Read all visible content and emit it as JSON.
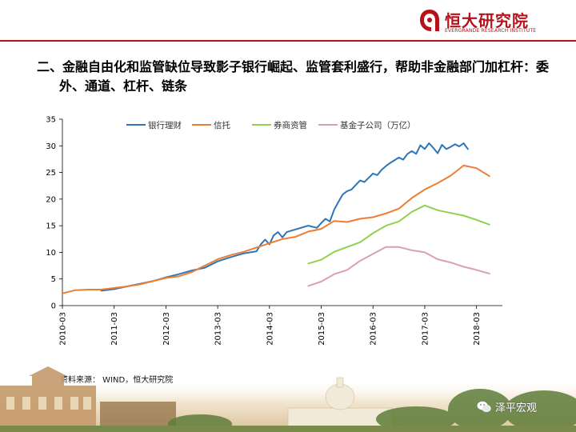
{
  "brand": {
    "name_cn": "恒大研究院",
    "name_en": "EVERGRANDE RESEARCH INSTITUTE",
    "color": "#b5121b"
  },
  "title_line1": "二、金融自由化和监管缺位导致影子银行崛起、监管套利盛行，帮助非金融部门加杠杆：委",
  "title_line2": "外、通道、杠杆、链条",
  "source": "资料来源： WIND，恒大研究院",
  "watermark": "泽平宏观",
  "chart_data": {
    "type": "line",
    "x_labels": [
      "2010-03",
      "2011-03",
      "2012-03",
      "2013-03",
      "2014-03",
      "2015-03",
      "2016-03",
      "2017-03",
      "2018-03"
    ],
    "ylim": [
      0,
      35
    ],
    "y_ticks": [
      0,
      5,
      10,
      15,
      20,
      25,
      30,
      35
    ],
    "grid": false,
    "legend_position": "top",
    "series": [
      {
        "name": "银行理财",
        "color": "#2e75b6",
        "points": [
          [
            "2010-12",
            2.8
          ],
          [
            "2011-03",
            3.1
          ],
          [
            "2011-06",
            3.6
          ],
          [
            "2011-09",
            4.1
          ],
          [
            "2011-12",
            4.6
          ],
          [
            "2012-03",
            5.3
          ],
          [
            "2012-06",
            5.9
          ],
          [
            "2012-09",
            6.6
          ],
          [
            "2012-12",
            7.1
          ],
          [
            "2013-03",
            8.3
          ],
          [
            "2013-06",
            9.1
          ],
          [
            "2013-09",
            9.8
          ],
          [
            "2013-12",
            10.2
          ],
          [
            "2014-01",
            11.5
          ],
          [
            "2014-02",
            12.4
          ],
          [
            "2014-03",
            11.5
          ],
          [
            "2014-04",
            13.2
          ],
          [
            "2014-05",
            13.8
          ],
          [
            "2014-06",
            12.8
          ],
          [
            "2014-07",
            13.8
          ],
          [
            "2014-09",
            14.3
          ],
          [
            "2014-12",
            15.0
          ],
          [
            "2015-02",
            14.6
          ],
          [
            "2015-03",
            15.5
          ],
          [
            "2015-04",
            16.3
          ],
          [
            "2015-05",
            15.8
          ],
          [
            "2015-06",
            18.0
          ],
          [
            "2015-07",
            19.5
          ],
          [
            "2015-08",
            20.9
          ],
          [
            "2015-09",
            21.5
          ],
          [
            "2015-10",
            21.8
          ],
          [
            "2015-12",
            23.5
          ],
          [
            "2016-01",
            23.2
          ],
          [
            "2016-03",
            24.8
          ],
          [
            "2016-04",
            24.5
          ],
          [
            "2016-05",
            25.5
          ],
          [
            "2016-06",
            26.2
          ],
          [
            "2016-07",
            26.8
          ],
          [
            "2016-09",
            27.8
          ],
          [
            "2016-10",
            27.4
          ],
          [
            "2016-11",
            28.5
          ],
          [
            "2016-12",
            29.0
          ],
          [
            "2017-01",
            28.5
          ],
          [
            "2017-02",
            30.1
          ],
          [
            "2017-03",
            29.4
          ],
          [
            "2017-04",
            30.5
          ],
          [
            "2017-05",
            29.6
          ],
          [
            "2017-06",
            28.6
          ],
          [
            "2017-07",
            30.2
          ],
          [
            "2017-08",
            29.4
          ],
          [
            "2017-09",
            29.8
          ],
          [
            "2017-10",
            30.3
          ],
          [
            "2017-11",
            29.9
          ],
          [
            "2017-12",
            30.5
          ],
          [
            "2018-01",
            29.4
          ]
        ]
      },
      {
        "name": "信托",
        "color": "#ed7d31",
        "points": [
          [
            "2010-03",
            2.3
          ],
          [
            "2010-06",
            2.9
          ],
          [
            "2010-09",
            3.0
          ],
          [
            "2010-12",
            3.0
          ],
          [
            "2011-03",
            3.3
          ],
          [
            "2011-06",
            3.6
          ],
          [
            "2011-09",
            4.0
          ],
          [
            "2011-12",
            4.6
          ],
          [
            "2012-03",
            5.2
          ],
          [
            "2012-06",
            5.5
          ],
          [
            "2012-09",
            6.3
          ],
          [
            "2012-12",
            7.5
          ],
          [
            "2013-03",
            8.7
          ],
          [
            "2013-06",
            9.5
          ],
          [
            "2013-09",
            10.1
          ],
          [
            "2013-12",
            10.9
          ],
          [
            "2014-03",
            11.7
          ],
          [
            "2014-06",
            12.5
          ],
          [
            "2014-09",
            12.9
          ],
          [
            "2014-12",
            13.9
          ],
          [
            "2015-03",
            14.4
          ],
          [
            "2015-06",
            15.9
          ],
          [
            "2015-09",
            15.7
          ],
          [
            "2015-12",
            16.3
          ],
          [
            "2016-03",
            16.6
          ],
          [
            "2016-06",
            17.3
          ],
          [
            "2016-09",
            18.2
          ],
          [
            "2016-12",
            20.2
          ],
          [
            "2017-03",
            21.8
          ],
          [
            "2017-06",
            23.0
          ],
          [
            "2017-09",
            24.4
          ],
          [
            "2017-12",
            26.3
          ],
          [
            "2018-03",
            25.8
          ],
          [
            "2018-06",
            24.3
          ]
        ]
      },
      {
        "name": "券商资管",
        "color": "#92d050",
        "points": [
          [
            "2014-12",
            7.9
          ],
          [
            "2015-03",
            8.6
          ],
          [
            "2015-06",
            10.1
          ],
          [
            "2015-09",
            11.0
          ],
          [
            "2015-12",
            11.9
          ],
          [
            "2016-03",
            13.6
          ],
          [
            "2016-06",
            15.0
          ],
          [
            "2016-09",
            15.8
          ],
          [
            "2016-12",
            17.6
          ],
          [
            "2017-03",
            18.8
          ],
          [
            "2017-06",
            17.9
          ],
          [
            "2017-09",
            17.4
          ],
          [
            "2017-12",
            16.9
          ],
          [
            "2018-03",
            16.1
          ],
          [
            "2018-06",
            15.2
          ]
        ]
      },
      {
        "name": "基金子公司（万亿）",
        "color": "#d8a0b6",
        "points": [
          [
            "2014-12",
            3.7
          ],
          [
            "2015-03",
            4.5
          ],
          [
            "2015-06",
            5.9
          ],
          [
            "2015-09",
            6.7
          ],
          [
            "2015-12",
            8.4
          ],
          [
            "2016-03",
            9.7
          ],
          [
            "2016-06",
            11.0
          ],
          [
            "2016-09",
            11.0
          ],
          [
            "2016-12",
            10.4
          ],
          [
            "2017-03",
            10.0
          ],
          [
            "2017-06",
            8.7
          ],
          [
            "2017-09",
            8.1
          ],
          [
            "2017-12",
            7.3
          ],
          [
            "2018-03",
            6.7
          ],
          [
            "2018-06",
            6.0
          ]
        ]
      }
    ]
  }
}
